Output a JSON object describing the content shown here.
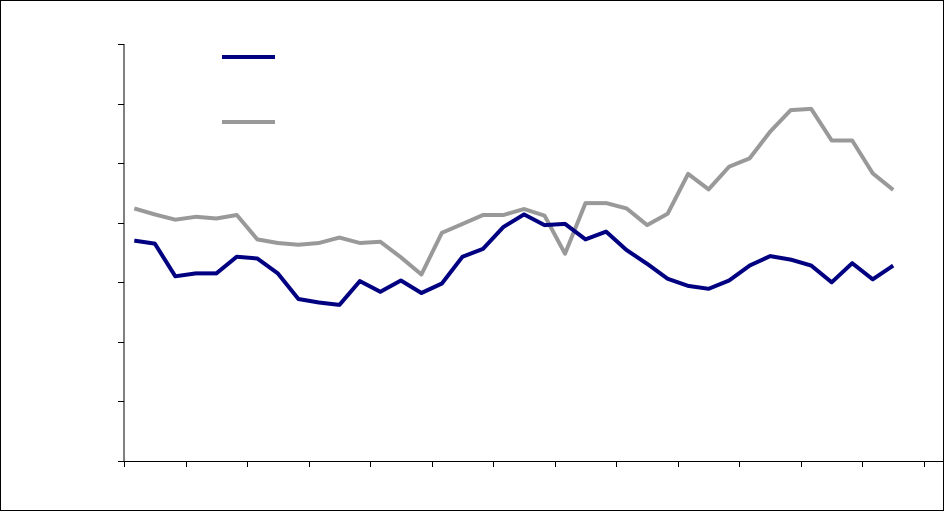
{
  "chart_data": {
    "type": "line",
    "title": "",
    "xlabel": "",
    "ylabel": "",
    "x": [
      1,
      2,
      3,
      4,
      5,
      6,
      7,
      8,
      9,
      10,
      11,
      12,
      13,
      14,
      15,
      16,
      17,
      18,
      19,
      20,
      21,
      22,
      23,
      24,
      25,
      26,
      27,
      28,
      29,
      30,
      31,
      32,
      33,
      34,
      35,
      36,
      37,
      38
    ],
    "ylim": [
      0,
      7
    ],
    "yticks": [
      0,
      1,
      2,
      3,
      4,
      5,
      6,
      7
    ],
    "xticks": [
      0.5,
      3.5,
      6.5,
      9.5,
      12.5,
      15.5,
      18.5,
      21.5,
      24.5,
      27.5,
      30.5,
      33.5,
      36.5,
      39.5
    ],
    "xlim": [
      0.5,
      39.5
    ],
    "grid": false,
    "legend_position": "top-left",
    "series": [
      {
        "color": "#000080",
        "values": [
          3.7,
          3.65,
          3.1,
          3.15,
          3.15,
          3.43,
          3.4,
          3.15,
          2.72,
          2.66,
          2.62,
          3.02,
          2.84,
          3.03,
          2.82,
          2.98,
          3.43,
          3.56,
          3.93,
          4.14,
          3.96,
          3.98,
          3.72,
          3.85,
          3.54,
          3.31,
          3.06,
          2.94,
          2.89,
          3.03,
          3.28,
          3.44,
          3.38,
          3.28,
          3.0,
          3.32,
          3.05,
          3.28
        ]
      },
      {
        "color": "#999999",
        "values": [
          4.24,
          4.14,
          4.05,
          4.1,
          4.07,
          4.13,
          3.72,
          3.66,
          3.63,
          3.66,
          3.75,
          3.66,
          3.68,
          3.42,
          3.13,
          3.83,
          3.98,
          4.13,
          4.13,
          4.23,
          4.12,
          3.48,
          4.33,
          4.33,
          4.24,
          3.96,
          4.15,
          4.82,
          4.56,
          4.94,
          5.08,
          5.53,
          5.89,
          5.91,
          5.38,
          5.38,
          4.83,
          4.55
        ]
      }
    ]
  }
}
